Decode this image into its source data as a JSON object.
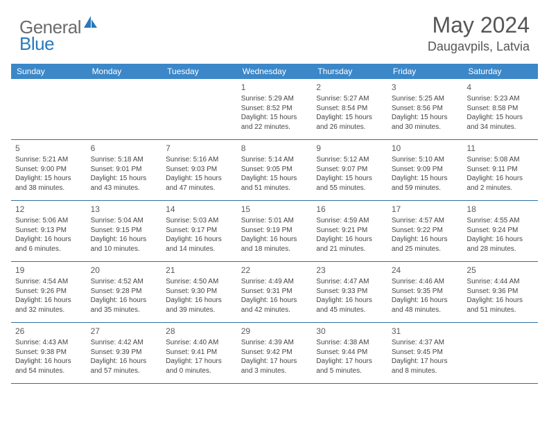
{
  "brand": {
    "part1": "General",
    "part2": "Blue"
  },
  "title": "May 2024",
  "location": "Daugavpils, Latvia",
  "colors": {
    "header_bg": "#3b87c8",
    "row_border": "#2f6ea5",
    "text": "#444444",
    "brand_gray": "#6b6b6b",
    "brand_blue": "#2878bd"
  },
  "dow": [
    "Sunday",
    "Monday",
    "Tuesday",
    "Wednesday",
    "Thursday",
    "Friday",
    "Saturday"
  ],
  "weeks": [
    [
      null,
      null,
      null,
      {
        "n": "1",
        "sr": "5:29 AM",
        "ss": "8:52 PM",
        "dl": "15 hours and 22 minutes."
      },
      {
        "n": "2",
        "sr": "5:27 AM",
        "ss": "8:54 PM",
        "dl": "15 hours and 26 minutes."
      },
      {
        "n": "3",
        "sr": "5:25 AM",
        "ss": "8:56 PM",
        "dl": "15 hours and 30 minutes."
      },
      {
        "n": "4",
        "sr": "5:23 AM",
        "ss": "8:58 PM",
        "dl": "15 hours and 34 minutes."
      }
    ],
    [
      {
        "n": "5",
        "sr": "5:21 AM",
        "ss": "9:00 PM",
        "dl": "15 hours and 38 minutes."
      },
      {
        "n": "6",
        "sr": "5:18 AM",
        "ss": "9:01 PM",
        "dl": "15 hours and 43 minutes."
      },
      {
        "n": "7",
        "sr": "5:16 AM",
        "ss": "9:03 PM",
        "dl": "15 hours and 47 minutes."
      },
      {
        "n": "8",
        "sr": "5:14 AM",
        "ss": "9:05 PM",
        "dl": "15 hours and 51 minutes."
      },
      {
        "n": "9",
        "sr": "5:12 AM",
        "ss": "9:07 PM",
        "dl": "15 hours and 55 minutes."
      },
      {
        "n": "10",
        "sr": "5:10 AM",
        "ss": "9:09 PM",
        "dl": "15 hours and 59 minutes."
      },
      {
        "n": "11",
        "sr": "5:08 AM",
        "ss": "9:11 PM",
        "dl": "16 hours and 2 minutes."
      }
    ],
    [
      {
        "n": "12",
        "sr": "5:06 AM",
        "ss": "9:13 PM",
        "dl": "16 hours and 6 minutes."
      },
      {
        "n": "13",
        "sr": "5:04 AM",
        "ss": "9:15 PM",
        "dl": "16 hours and 10 minutes."
      },
      {
        "n": "14",
        "sr": "5:03 AM",
        "ss": "9:17 PM",
        "dl": "16 hours and 14 minutes."
      },
      {
        "n": "15",
        "sr": "5:01 AM",
        "ss": "9:19 PM",
        "dl": "16 hours and 18 minutes."
      },
      {
        "n": "16",
        "sr": "4:59 AM",
        "ss": "9:21 PM",
        "dl": "16 hours and 21 minutes."
      },
      {
        "n": "17",
        "sr": "4:57 AM",
        "ss": "9:22 PM",
        "dl": "16 hours and 25 minutes."
      },
      {
        "n": "18",
        "sr": "4:55 AM",
        "ss": "9:24 PM",
        "dl": "16 hours and 28 minutes."
      }
    ],
    [
      {
        "n": "19",
        "sr": "4:54 AM",
        "ss": "9:26 PM",
        "dl": "16 hours and 32 minutes."
      },
      {
        "n": "20",
        "sr": "4:52 AM",
        "ss": "9:28 PM",
        "dl": "16 hours and 35 minutes."
      },
      {
        "n": "21",
        "sr": "4:50 AM",
        "ss": "9:30 PM",
        "dl": "16 hours and 39 minutes."
      },
      {
        "n": "22",
        "sr": "4:49 AM",
        "ss": "9:31 PM",
        "dl": "16 hours and 42 minutes."
      },
      {
        "n": "23",
        "sr": "4:47 AM",
        "ss": "9:33 PM",
        "dl": "16 hours and 45 minutes."
      },
      {
        "n": "24",
        "sr": "4:46 AM",
        "ss": "9:35 PM",
        "dl": "16 hours and 48 minutes."
      },
      {
        "n": "25",
        "sr": "4:44 AM",
        "ss": "9:36 PM",
        "dl": "16 hours and 51 minutes."
      }
    ],
    [
      {
        "n": "26",
        "sr": "4:43 AM",
        "ss": "9:38 PM",
        "dl": "16 hours and 54 minutes."
      },
      {
        "n": "27",
        "sr": "4:42 AM",
        "ss": "9:39 PM",
        "dl": "16 hours and 57 minutes."
      },
      {
        "n": "28",
        "sr": "4:40 AM",
        "ss": "9:41 PM",
        "dl": "17 hours and 0 minutes."
      },
      {
        "n": "29",
        "sr": "4:39 AM",
        "ss": "9:42 PM",
        "dl": "17 hours and 3 minutes."
      },
      {
        "n": "30",
        "sr": "4:38 AM",
        "ss": "9:44 PM",
        "dl": "17 hours and 5 minutes."
      },
      {
        "n": "31",
        "sr": "4:37 AM",
        "ss": "9:45 PM",
        "dl": "17 hours and 8 minutes."
      },
      null
    ]
  ],
  "labels": {
    "sunrise": "Sunrise:",
    "sunset": "Sunset:",
    "daylight": "Daylight:"
  }
}
